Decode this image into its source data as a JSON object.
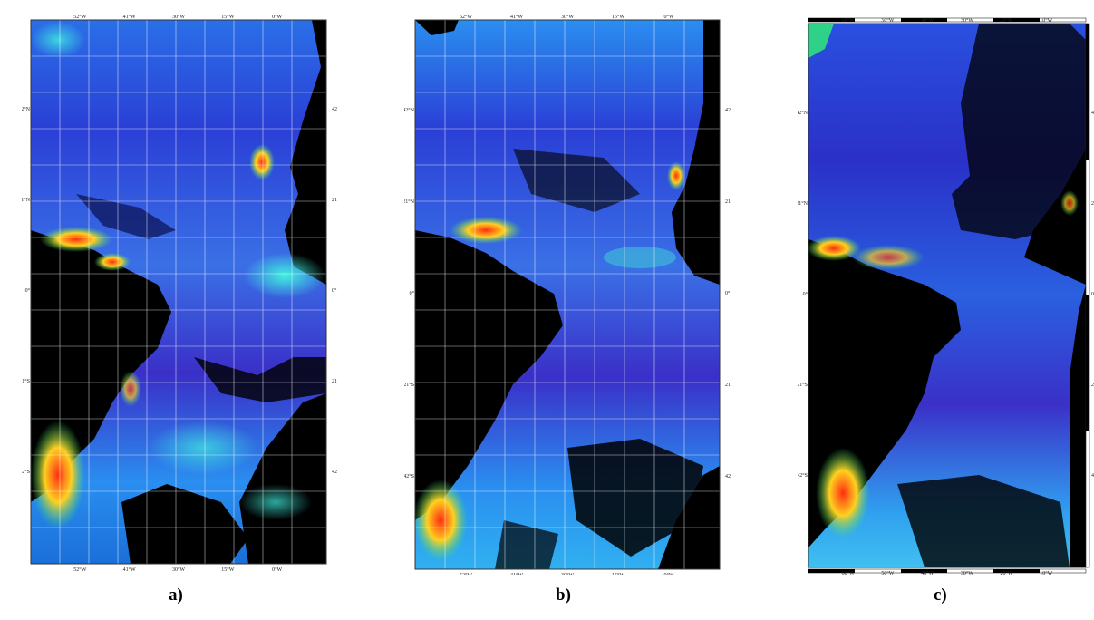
{
  "panels": [
    {
      "id": "a",
      "caption": "a)",
      "top_ticks": [
        "52°W",
        "41°W",
        "30°W",
        "15°W",
        "0°W"
      ],
      "bottom_ticks": [
        "52°W",
        "41°W",
        "30°W",
        "15°W",
        "0°W"
      ],
      "left_ticks": [
        "42°N",
        "21°N",
        "0°",
        "21°S",
        "42°S"
      ],
      "right_ticks": [
        "42°N",
        "21°N",
        "0°",
        "21°S",
        "42°S"
      ],
      "grid": true
    },
    {
      "id": "b",
      "caption": "b)",
      "top_ticks": [
        "52°W",
        "41°W",
        "30°W",
        "15°W",
        "0°W"
      ],
      "bottom_ticks": [
        "52°W",
        "41°W",
        "30°W",
        "15°W",
        "0°W"
      ],
      "left_ticks": [
        "42°N",
        "21°N",
        "0°",
        "21°S",
        "42°S"
      ],
      "right_ticks": [
        "42°N",
        "21°N",
        "0°",
        "21°S",
        "42°S"
      ],
      "grid": true
    },
    {
      "id": "c",
      "caption": "c)",
      "top_ticks": [
        "60°W",
        "50°W",
        "40°W",
        "30°W",
        "20°W",
        "10°W"
      ],
      "bottom_ticks": [
        "60°W",
        "50°W",
        "40°W",
        "30°W",
        "20°W",
        "10°W"
      ],
      "left_ticks": [
        "42°N",
        "21°N",
        "0°",
        "21°S",
        "42°S"
      ],
      "right_ticks": [
        "4",
        "2",
        "0",
        "2",
        "4"
      ],
      "grid": false
    }
  ],
  "colors": {
    "land": "#000000",
    "ocean_low": "#1d2fd8",
    "ocean_mid": "#2f7ff0",
    "ocean_high": "#33e0e0",
    "coastal_high": "#ff3b10",
    "coastal_mid": "#ffe030",
    "grid": "#ffffff"
  }
}
